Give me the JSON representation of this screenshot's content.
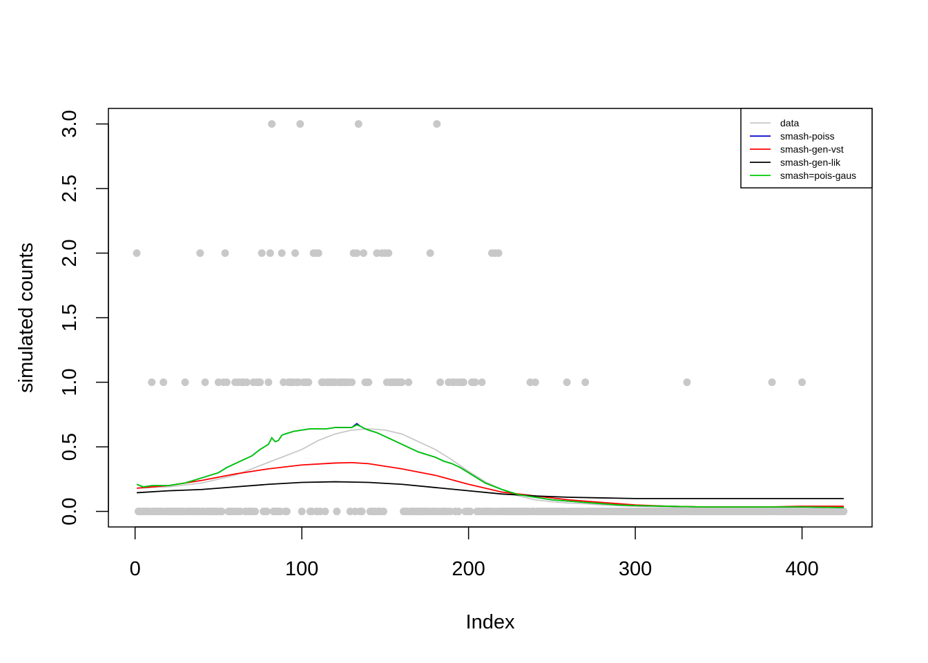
{
  "chart_data": {
    "type": "scatter",
    "title": "",
    "xlabel": "Index",
    "ylabel": "simulated counts",
    "xlim": [
      -16,
      442
    ],
    "ylim": [
      -0.12,
      3.12
    ],
    "xticks": [
      0,
      100,
      200,
      300,
      400
    ],
    "yticks": [
      0.0,
      0.5,
      1.0,
      1.5,
      2.0,
      2.5,
      3.0
    ],
    "xtick_labels": [
      "0",
      "100",
      "200",
      "300",
      "400"
    ],
    "ytick_labels": [
      "0.0",
      "0.5",
      "1.0",
      "1.5",
      "2.0",
      "2.5",
      "3.0"
    ],
    "grid": false,
    "legend_position": "top-right",
    "n": 425,
    "points": {
      "name": "data",
      "color": "#c8c8c8",
      "ones_x": [
        10,
        17,
        30,
        42,
        50,
        53,
        55,
        60,
        62,
        64,
        65,
        67,
        71,
        73,
        74,
        75,
        80,
        89,
        92,
        93,
        94,
        95,
        96,
        97,
        98,
        99,
        101,
        102,
        103,
        104,
        112,
        113,
        115,
        116,
        117,
        118,
        119,
        120,
        122,
        123,
        124,
        125,
        126,
        127,
        128,
        130,
        138,
        139,
        140,
        145,
        150,
        151,
        152,
        153,
        154,
        155,
        156,
        157,
        158,
        159,
        160,
        164,
        181,
        183,
        188,
        190,
        191,
        193,
        195,
        196,
        197,
        202,
        203,
        204,
        208,
        237,
        240,
        259,
        270,
        331,
        382,
        400
      ],
      "twos_x": [
        1,
        39,
        54,
        76,
        81,
        88,
        96,
        107,
        108,
        110,
        131,
        133,
        137,
        145,
        148,
        150,
        152,
        177,
        214,
        216,
        218
      ],
      "threes_x": [
        82,
        99,
        134,
        181
      ],
      "zeros": "all remaining indices 1..425"
    },
    "series": [
      {
        "name": "data",
        "color": "#c8c8c8",
        "x": [
          1,
          20,
          40,
          60,
          80,
          100,
          110,
          120,
          130,
          140,
          150,
          160,
          170,
          180,
          190,
          200,
          210,
          220,
          230,
          240,
          250,
          260,
          270,
          280,
          300,
          320,
          340,
          360,
          380,
          400,
          425
        ],
        "y": [
          0.18,
          0.19,
          0.22,
          0.28,
          0.38,
          0.48,
          0.55,
          0.6,
          0.63,
          0.64,
          0.63,
          0.6,
          0.54,
          0.48,
          0.4,
          0.31,
          0.23,
          0.17,
          0.12,
          0.09,
          0.075,
          0.065,
          0.06,
          0.05,
          0.04,
          0.035,
          0.03,
          0.03,
          0.03,
          0.03,
          0.03
        ]
      },
      {
        "name": "smash-poiss",
        "color": "#0000cc",
        "x": [
          1,
          5,
          10,
          20,
          30,
          40,
          45,
          50,
          55,
          60,
          65,
          70,
          75,
          80,
          82,
          84,
          86,
          88,
          90,
          95,
          100,
          105,
          110,
          115,
          120,
          125,
          130,
          133,
          135,
          138,
          140,
          145,
          150,
          155,
          160,
          165,
          170,
          175,
          180,
          185,
          190,
          195,
          200,
          205,
          210,
          220,
          230,
          240,
          250,
          260,
          270,
          280,
          290,
          300,
          320,
          340,
          360,
          380,
          400,
          425
        ],
        "y": [
          0.21,
          0.19,
          0.2,
          0.2,
          0.22,
          0.26,
          0.28,
          0.3,
          0.34,
          0.37,
          0.4,
          0.43,
          0.48,
          0.52,
          0.57,
          0.54,
          0.55,
          0.59,
          0.6,
          0.62,
          0.63,
          0.64,
          0.64,
          0.64,
          0.65,
          0.65,
          0.65,
          0.68,
          0.66,
          0.64,
          0.63,
          0.61,
          0.58,
          0.55,
          0.52,
          0.49,
          0.46,
          0.44,
          0.42,
          0.39,
          0.37,
          0.34,
          0.3,
          0.26,
          0.22,
          0.17,
          0.13,
          0.11,
          0.09,
          0.08,
          0.07,
          0.06,
          0.05,
          0.045,
          0.04,
          0.035,
          0.035,
          0.035,
          0.035,
          0.03
        ]
      },
      {
        "name": "smash-gen-vst",
        "color": "#ff0000",
        "x": [
          1,
          20,
          40,
          60,
          80,
          100,
          120,
          130,
          140,
          160,
          180,
          200,
          220,
          240,
          260,
          280,
          300,
          320,
          340,
          360,
          380,
          400,
          425
        ],
        "y": [
          0.18,
          0.2,
          0.24,
          0.29,
          0.33,
          0.36,
          0.375,
          0.378,
          0.37,
          0.33,
          0.28,
          0.21,
          0.15,
          0.12,
          0.09,
          0.07,
          0.05,
          0.04,
          0.035,
          0.035,
          0.035,
          0.04,
          0.04
        ]
      },
      {
        "name": "smash-gen-lik",
        "color": "#000000",
        "x": [
          1,
          20,
          40,
          60,
          80,
          100,
          120,
          140,
          160,
          180,
          200,
          220,
          240,
          260,
          280,
          300,
          320,
          340,
          360,
          380,
          400,
          425
        ],
        "y": [
          0.145,
          0.16,
          0.17,
          0.19,
          0.21,
          0.225,
          0.23,
          0.225,
          0.21,
          0.185,
          0.16,
          0.135,
          0.12,
          0.11,
          0.105,
          0.1,
          0.1,
          0.1,
          0.1,
          0.1,
          0.1,
          0.1
        ]
      },
      {
        "name": "smash=pois-gaus",
        "color": "#00cc00",
        "x": [
          1,
          5,
          10,
          20,
          30,
          40,
          45,
          50,
          55,
          60,
          65,
          70,
          75,
          80,
          82,
          84,
          86,
          88,
          90,
          95,
          100,
          105,
          110,
          115,
          120,
          125,
          130,
          133,
          135,
          138,
          140,
          145,
          150,
          155,
          160,
          165,
          170,
          175,
          180,
          185,
          190,
          195,
          200,
          205,
          210,
          220,
          230,
          240,
          250,
          260,
          270,
          280,
          290,
          300,
          320,
          340,
          360,
          380,
          400,
          425
        ],
        "y": [
          0.21,
          0.19,
          0.2,
          0.2,
          0.22,
          0.26,
          0.28,
          0.3,
          0.34,
          0.37,
          0.4,
          0.43,
          0.48,
          0.52,
          0.57,
          0.54,
          0.55,
          0.59,
          0.6,
          0.62,
          0.63,
          0.64,
          0.64,
          0.64,
          0.65,
          0.65,
          0.65,
          0.67,
          0.66,
          0.64,
          0.63,
          0.61,
          0.58,
          0.55,
          0.52,
          0.49,
          0.46,
          0.44,
          0.42,
          0.39,
          0.37,
          0.34,
          0.3,
          0.26,
          0.22,
          0.17,
          0.13,
          0.11,
          0.09,
          0.08,
          0.07,
          0.06,
          0.05,
          0.045,
          0.04,
          0.035,
          0.035,
          0.035,
          0.035,
          0.03
        ]
      }
    ],
    "legend": [
      "data",
      "smash-poiss",
      "smash-gen-vst",
      "smash-gen-lik",
      "smash=pois-gaus"
    ]
  }
}
